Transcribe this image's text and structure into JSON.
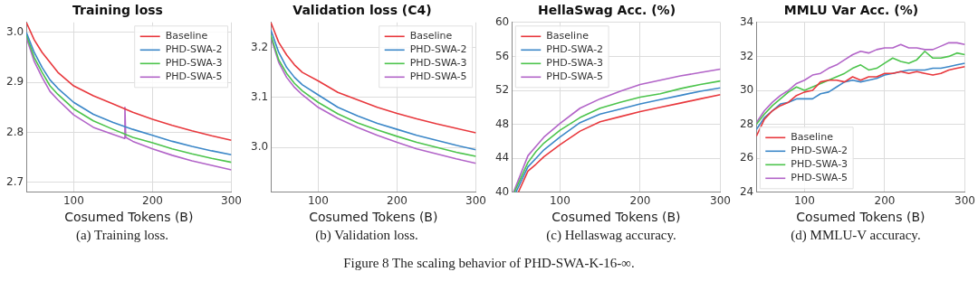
{
  "chart_data": [
    {
      "type": "line",
      "title": "Training loss",
      "xlabel": "Cosumed Tokens (B)",
      "xlim": [
        40,
        300
      ],
      "xticks": [
        100,
        200,
        300
      ],
      "ylim": [
        2.68,
        3.02
      ],
      "yticks": [
        2.7,
        2.8,
        2.9,
        {
          "value": 3,
          "label": "3.0"
        }
      ],
      "grid": true,
      "legend": "top right",
      "annotations": [
        "(a) Training loss.",
        "Figure 8 The scaling behavior of PHD-SWA-K-16-∞."
      ],
      "series": [
        {
          "name": "Baseline",
          "color": "#e8383d",
          "x": [
            40,
            50,
            60,
            70,
            80,
            100,
            125,
            150,
            175,
            200,
            225,
            250,
            275,
            300
          ],
          "values": [
            3.02,
            2.985,
            2.96,
            2.94,
            2.92,
            2.893,
            2.873,
            2.857,
            2.84,
            2.826,
            2.814,
            2.803,
            2.793,
            2.784
          ]
        },
        {
          "name": "PHD-SWA-2",
          "color": "#3b87c8",
          "x": [
            40,
            50,
            60,
            70,
            80,
            100,
            125,
            150,
            175,
            200,
            225,
            250,
            275,
            300
          ],
          "values": [
            3.0,
            2.96,
            2.93,
            2.905,
            2.888,
            2.86,
            2.836,
            2.82,
            2.806,
            2.794,
            2.782,
            2.772,
            2.763,
            2.755
          ]
        },
        {
          "name": "PHD-SWA-3",
          "color": "#4cc44c",
          "x": [
            40,
            50,
            60,
            70,
            80,
            100,
            125,
            150,
            175,
            200,
            225,
            250,
            275,
            300
          ],
          "values": [
            2.995,
            2.95,
            2.92,
            2.893,
            2.876,
            2.847,
            2.823,
            2.806,
            2.79,
            2.779,
            2.767,
            2.757,
            2.748,
            2.74
          ]
        },
        {
          "name": "PHD-SWA-5",
          "color": "#b264c8",
          "x": [
            40,
            50,
            60,
            70,
            80,
            100,
            125,
            150,
            164,
            165,
            166,
            175,
            200,
            225,
            250,
            275,
            300
          ],
          "values": [
            2.99,
            2.942,
            2.91,
            2.882,
            2.865,
            2.835,
            2.81,
            2.796,
            2.788,
            2.85,
            2.79,
            2.782,
            2.767,
            2.754,
            2.743,
            2.734,
            2.725
          ]
        }
      ]
    },
    {
      "type": "line",
      "title": "Validation loss (C4)",
      "xlabel": "Cosumed Tokens (B)",
      "xlim": [
        40,
        300
      ],
      "xticks": [
        100,
        200,
        300
      ],
      "ylim": [
        2.91,
        3.25
      ],
      "yticks": [
        {
          "value": 3,
          "label": "3.0"
        },
        3.1,
        3.2
      ],
      "grid": true,
      "legend": "top right",
      "annotations": [
        "(b) Validation loss."
      ],
      "series": [
        {
          "name": "Baseline",
          "color": "#e8383d",
          "x": [
            40,
            50,
            60,
            70,
            80,
            100,
            125,
            150,
            175,
            200,
            225,
            250,
            275,
            300
          ],
          "values": [
            3.25,
            3.21,
            3.185,
            3.165,
            3.15,
            3.133,
            3.11,
            3.095,
            3.08,
            3.068,
            3.057,
            3.047,
            3.038,
            3.029
          ]
        },
        {
          "name": "PHD-SWA-2",
          "color": "#3b87c8",
          "x": [
            40,
            50,
            60,
            70,
            80,
            100,
            125,
            150,
            175,
            200,
            225,
            250,
            275,
            300
          ],
          "values": [
            3.235,
            3.19,
            3.16,
            3.14,
            3.125,
            3.105,
            3.08,
            3.063,
            3.048,
            3.036,
            3.024,
            3.014,
            3.004,
            2.995
          ]
        },
        {
          "name": "PHD-SWA-3",
          "color": "#4cc44c",
          "x": [
            40,
            50,
            60,
            70,
            80,
            100,
            125,
            150,
            175,
            200,
            225,
            250,
            275,
            300
          ],
          "values": [
            3.225,
            3.175,
            3.148,
            3.128,
            3.113,
            3.09,
            3.067,
            3.049,
            3.035,
            3.022,
            3.01,
            3.0,
            2.99,
            2.982
          ]
        },
        {
          "name": "PHD-SWA-5",
          "color": "#b264c8",
          "x": [
            40,
            50,
            60,
            70,
            80,
            100,
            125,
            150,
            175,
            200,
            225,
            250,
            275,
            300
          ],
          "values": [
            3.22,
            3.17,
            3.14,
            3.12,
            3.105,
            3.08,
            3.058,
            3.04,
            3.024,
            3.01,
            2.997,
            2.987,
            2.977,
            2.968
          ]
        }
      ]
    },
    {
      "type": "line",
      "title": "HellaSwag Acc. (%)",
      "xlabel": "Cosumed Tokens (B)",
      "xlim": [
        40,
        300
      ],
      "xticks": [
        100,
        200,
        300
      ],
      "ylim": [
        40,
        60
      ],
      "yticks": [
        40,
        44,
        48,
        52,
        56,
        60
      ],
      "grid": true,
      "legend": "top left",
      "annotations": [
        "(c) Hellaswag accuracy."
      ],
      "series": [
        {
          "name": "Baseline",
          "color": "#e8383d",
          "x": [
            48,
            60,
            70,
            80,
            100,
            125,
            150,
            175,
            200,
            225,
            250,
            275,
            300
          ],
          "values": [
            40,
            42.5,
            43.3,
            44.2,
            45.6,
            47.2,
            48.3,
            48.9,
            49.5,
            50.0,
            50.5,
            51.0,
            51.5
          ]
        },
        {
          "name": "PHD-SWA-2",
          "color": "#3b87c8",
          "x": [
            45,
            60,
            70,
            80,
            100,
            125,
            150,
            175,
            200,
            225,
            250,
            275,
            300
          ],
          "values": [
            40,
            43,
            44.0,
            45,
            46.5,
            48.2,
            49.2,
            49.8,
            50.4,
            50.9,
            51.4,
            51.9,
            52.3
          ]
        },
        {
          "name": "PHD-SWA-3",
          "color": "#4cc44c",
          "x": [
            43,
            60,
            70,
            80,
            100,
            125,
            150,
            175,
            200,
            225,
            250,
            275,
            300
          ],
          "values": [
            40,
            43.5,
            44.8,
            45.8,
            47.3,
            48.8,
            49.9,
            50.6,
            51.2,
            51.6,
            52.2,
            52.7,
            53.1
          ]
        },
        {
          "name": "PHD-SWA-5",
          "color": "#b264c8",
          "x": [
            42,
            60,
            70,
            80,
            100,
            125,
            150,
            175,
            200,
            225,
            250,
            275,
            300
          ],
          "values": [
            40,
            44.3,
            45.4,
            46.5,
            48.1,
            49.9,
            51.0,
            51.9,
            52.7,
            53.2,
            53.7,
            54.1,
            54.5
          ]
        }
      ]
    },
    {
      "type": "line",
      "title": "MMLU Var Acc. (%)",
      "xlabel": "Cosumed Tokens (B)",
      "xlim": [
        40,
        300
      ],
      "xticks": [
        100,
        200,
        300
      ],
      "ylim": [
        24,
        34
      ],
      "yticks": [
        24,
        26,
        28,
        30,
        32,
        34
      ],
      "grid": true,
      "legend": "bottom left",
      "annotations": [
        "(d) MMLU-V accuracy."
      ],
      "series": [
        {
          "name": "Baseline",
          "color": "#e8383d",
          "x": [
            40,
            50,
            60,
            70,
            80,
            90,
            100,
            110,
            120,
            130,
            140,
            150,
            160,
            170,
            180,
            190,
            200,
            210,
            220,
            230,
            240,
            250,
            260,
            270,
            280,
            290,
            300
          ],
          "values": [
            27.3,
            28.3,
            28.8,
            29.1,
            29.3,
            29.7,
            29.9,
            30.0,
            30.5,
            30.6,
            30.6,
            30.5,
            30.8,
            30.6,
            30.8,
            30.8,
            31.0,
            31.0,
            31.1,
            31.0,
            31.1,
            31.0,
            30.9,
            31.0,
            31.2,
            31.3,
            31.4
          ]
        },
        {
          "name": "PHD-SWA-2",
          "color": "#3b87c8",
          "x": [
            40,
            50,
            60,
            70,
            80,
            90,
            100,
            110,
            120,
            130,
            140,
            150,
            160,
            170,
            180,
            190,
            200,
            210,
            220,
            230,
            240,
            250,
            260,
            270,
            280,
            290,
            300
          ],
          "values": [
            27.7,
            28.4,
            28.8,
            29.2,
            29.3,
            29.5,
            29.5,
            29.5,
            29.8,
            29.9,
            30.2,
            30.5,
            30.6,
            30.5,
            30.6,
            30.7,
            30.9,
            31.0,
            31.1,
            31.2,
            31.2,
            31.2,
            31.3,
            31.3,
            31.4,
            31.5,
            31.6
          ]
        },
        {
          "name": "PHD-SWA-3",
          "color": "#4cc44c",
          "x": [
            40,
            50,
            60,
            70,
            80,
            90,
            100,
            110,
            120,
            130,
            140,
            150,
            160,
            170,
            180,
            190,
            200,
            210,
            220,
            230,
            240,
            250,
            260,
            270,
            280,
            290,
            300
          ],
          "values": [
            28.0,
            28.6,
            29.1,
            29.5,
            29.9,
            30.2,
            30.0,
            30.2,
            30.4,
            30.6,
            30.8,
            31.0,
            31.3,
            31.5,
            31.2,
            31.3,
            31.6,
            31.9,
            31.7,
            31.6,
            31.8,
            32.3,
            31.9,
            31.9,
            32.0,
            32.2,
            32.1
          ]
        },
        {
          "name": "PHD-SWA-5",
          "color": "#b264c8",
          "x": [
            40,
            50,
            60,
            70,
            80,
            90,
            100,
            110,
            120,
            130,
            140,
            150,
            160,
            170,
            180,
            190,
            200,
            210,
            220,
            230,
            240,
            250,
            260,
            270,
            280,
            290,
            300
          ],
          "values": [
            28.1,
            28.8,
            29.3,
            29.7,
            30.0,
            30.4,
            30.6,
            30.9,
            31.0,
            31.3,
            31.5,
            31.8,
            32.1,
            32.3,
            32.2,
            32.4,
            32.5,
            32.5,
            32.7,
            32.5,
            32.5,
            32.4,
            32.4,
            32.6,
            32.8,
            32.8,
            32.7
          ]
        }
      ]
    }
  ]
}
